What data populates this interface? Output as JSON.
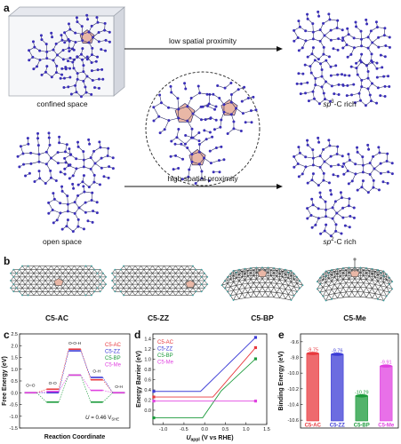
{
  "panel_a": {
    "letter": "a",
    "confined_label": "confined space",
    "open_label": "open space",
    "arrow_top": "low spatial proximity",
    "arrow_bottom": "high spatial proximity",
    "sp3_prefix": "sp",
    "sp3_sup": "3",
    "sp3_suffix": "-C rich",
    "sp2_prefix": "sp",
    "sp2_sup": "2",
    "sp2_suffix": "-C rich"
  },
  "panel_b": {
    "letter": "b",
    "structures": [
      "C5-AC",
      "C5-ZZ",
      "C5-BP",
      "C5-Me"
    ]
  },
  "colors": {
    "AC": "#e8383d",
    "ZZ": "#3b3bd6",
    "BP": "#1a9a3a",
    "Me": "#e040e0",
    "atom": "#3a2fb8",
    "bond": "#1c1c5a",
    "pent": "#e9b7a6"
  },
  "chart_data": [
    {
      "type": "line",
      "panel": "c",
      "title": "",
      "xlabel": "Reaction Coordinate",
      "ylabel": "Free Energy (eV)",
      "yticks": [
        "-1.5",
        "-1.0",
        "-0.5",
        "0.0",
        "0.5",
        "1.0",
        "1.5",
        "2.0",
        "2.5"
      ],
      "ylim": [
        -1.5,
        2.5
      ],
      "annotation": "U = 0.46 V",
      "annotation_sub": "SHE",
      "species": [
        "O=O",
        "O-O",
        "O-O-H",
        "O-H",
        "O-H"
      ],
      "series": [
        {
          "name": "C5-AC",
          "key": "AC",
          "values": [
            0.0,
            0.15,
            1.85,
            0.55,
            0.0
          ]
        },
        {
          "name": "C5-ZZ",
          "key": "ZZ",
          "values": [
            0.0,
            0.0,
            1.78,
            0.65,
            0.0
          ]
        },
        {
          "name": "C5-BP",
          "key": "BP",
          "values": [
            0.0,
            -0.4,
            0.75,
            -0.4,
            0.0
          ]
        },
        {
          "name": "C5-Me",
          "key": "Me",
          "values": [
            0.0,
            0.05,
            0.75,
            0.1,
            0.0
          ]
        }
      ]
    },
    {
      "type": "line",
      "panel": "d",
      "title": "",
      "xlabel": "U",
      "xlabel_sub": "appl",
      "xlabel_suffix": " (V vs RHE)",
      "ylabel": "Energy Barrier (eV)",
      "xticks": [
        "-1.0",
        "-0.5",
        "0.0",
        "0.5",
        "1.0",
        "1.5"
      ],
      "yticks": [
        "0.0",
        "0.2",
        "0.4",
        "0.6",
        "0.8",
        "1.0",
        "1.2",
        "1.4"
      ],
      "xlim": [
        -1.25,
        1.5
      ],
      "ylim": [
        -0.28,
        1.5
      ],
      "series": [
        {
          "name": "C5-AC",
          "key": "AC",
          "x": [
            -1.23,
            0.2,
            1.23
          ],
          "y": [
            0.26,
            0.26,
            1.23
          ]
        },
        {
          "name": "C5-ZZ",
          "key": "ZZ",
          "x": [
            -1.23,
            -0.1,
            1.23
          ],
          "y": [
            0.37,
            0.37,
            1.43
          ]
        },
        {
          "name": "C5-BP",
          "key": "BP",
          "x": [
            -1.23,
            -0.05,
            0.4,
            1.23
          ],
          "y": [
            -0.15,
            -0.15,
            0.38,
            1.01
          ]
        },
        {
          "name": "C5-Me",
          "key": "Me",
          "x": [
            -1.23,
            1.23
          ],
          "y": [
            0.18,
            0.18
          ]
        }
      ]
    },
    {
      "type": "bar",
      "panel": "e",
      "title": "",
      "ylabel": "Binding Energy (eV)",
      "yticks": [
        "-9.6",
        "-9.8",
        "-10.0",
        "-10.2",
        "-10.4",
        "-10.6"
      ],
      "ylim": [
        -9.5,
        -10.7
      ],
      "categories": [
        "C5-AC",
        "C5-ZZ",
        "C5-BP",
        "C5-Me"
      ],
      "values": [
        -9.75,
        -9.76,
        -10.29,
        -9.91
      ],
      "labels": [
        "-9.75",
        "-9.76",
        "-10.29",
        "-9.91"
      ],
      "keys": [
        "AC",
        "ZZ",
        "BP",
        "Me"
      ]
    }
  ]
}
